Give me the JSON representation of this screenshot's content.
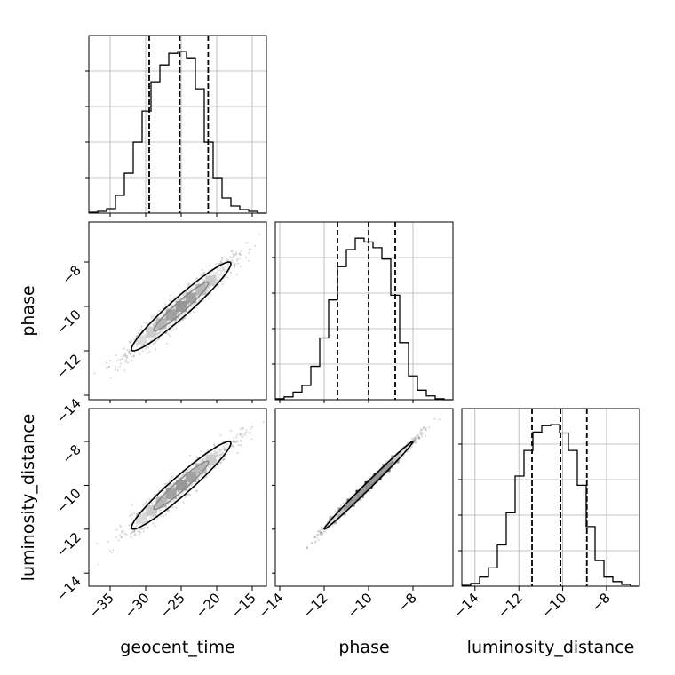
{
  "chart_data": {
    "type": "corner",
    "parameters": [
      "geocent_time",
      "phase",
      "luminosity_distance"
    ],
    "axis_labels": {
      "x": [
        "geocent_time",
        "phase",
        "luminosity_distance"
      ],
      "y": [
        "phase",
        "luminosity_distance"
      ]
    },
    "ranges": [
      [
        -38,
        -13
      ],
      [
        -14.2,
        -6.2
      ],
      [
        -14.6,
        -6.5
      ]
    ],
    "ticks": [
      {
        "values": [
          -35,
          -30,
          -25,
          -20,
          -15
        ],
        "labels": [
          "−35",
          "−30",
          "−25",
          "−20",
          "−15"
        ]
      },
      {
        "values": [
          -14,
          -12,
          -10,
          -8
        ],
        "labels": [
          "−14",
          "−12",
          "−10",
          "−8"
        ]
      },
      {
        "values": [
          -14,
          -12,
          -10,
          -8
        ],
        "labels": [
          "−14",
          "−12",
          "−10",
          "−8"
        ]
      }
    ],
    "quantiles": [
      [
        -29.5,
        -25.2,
        -21.2
      ],
      [
        -11.4,
        -10.0,
        -8.8
      ],
      [
        -11.4,
        -10.1,
        -8.9
      ]
    ],
    "histograms": [
      {
        "param": "geocent_time",
        "edges_start": -38,
        "bin_width": 1.25,
        "counts": [
          1,
          2,
          5,
          20,
          45,
          80,
          115,
          148,
          167,
          180,
          182,
          175,
          140,
          80,
          40,
          17,
          8,
          4,
          2,
          0
        ]
      },
      {
        "param": "phase",
        "edges_start": -14.2,
        "bin_width": 0.4,
        "counts": [
          1,
          3,
          8,
          15,
          35,
          65,
          105,
          140,
          158,
          170,
          166,
          160,
          148,
          110,
          60,
          25,
          10,
          4,
          1,
          0
        ]
      },
      {
        "param": "luminosity_distance",
        "edges_start": -14.6,
        "bin_width": 0.405,
        "counts": [
          1,
          3,
          10,
          20,
          45,
          80,
          120,
          148,
          168,
          175,
          176,
          167,
          148,
          110,
          65,
          28,
          10,
          5,
          2,
          0
        ]
      }
    ],
    "correlations": [
      {
        "x": "geocent_time",
        "y": "phase",
        "x_mean": -25,
        "y_mean": -10,
        "x_sd": 3.5,
        "y_sd": 1.0,
        "rho": 0.96
      },
      {
        "x": "geocent_time",
        "y": "luminosity_distance",
        "x_mean": -25,
        "y_mean": -10,
        "x_sd": 3.5,
        "y_sd": 1.0,
        "rho": 0.96
      },
      {
        "x": "phase",
        "y": "luminosity_distance",
        "x_mean": -10,
        "y_mean": -10,
        "x_sd": 1.0,
        "y_sd": 1.0,
        "rho": 0.995
      }
    ],
    "grid": true,
    "colors": {
      "line": "#000000",
      "grid": "#b0b0b0",
      "scatter": "#000000"
    }
  }
}
